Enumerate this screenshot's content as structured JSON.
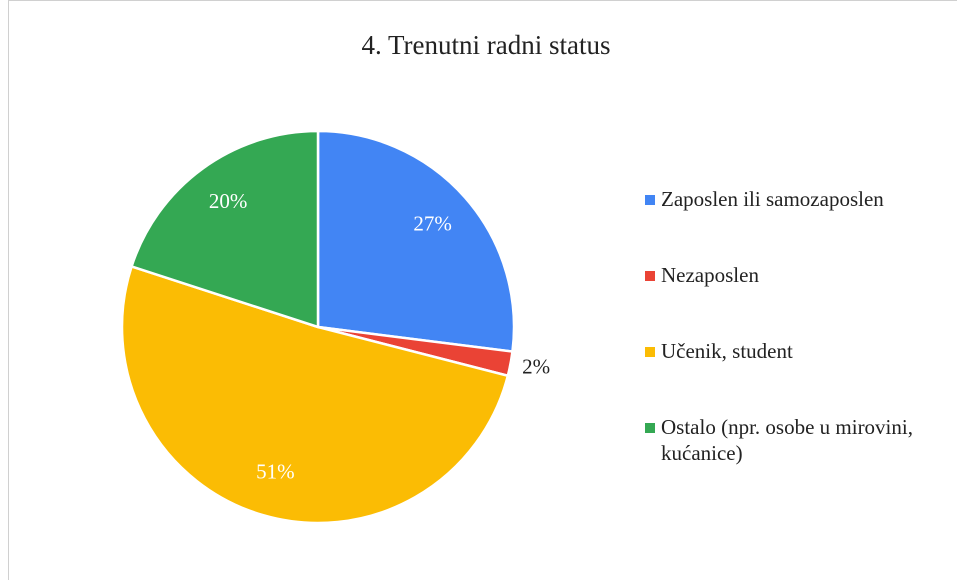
{
  "chart_data": {
    "type": "pie",
    "title": "4. Trenutni radni status",
    "categories": [
      "Zaposlen ili samozaposlen",
      "Nezaposlen",
      "Učenik, student",
      "Ostalo (npr. osobe u mirovini, kućanice)"
    ],
    "values": [
      27,
      2,
      51,
      20
    ],
    "value_labels": [
      "27%",
      "2%",
      "51%",
      "20%"
    ],
    "colors": [
      "#4285f4",
      "#ea4335",
      "#fbbc04",
      "#34a853"
    ],
    "legend": "right"
  }
}
